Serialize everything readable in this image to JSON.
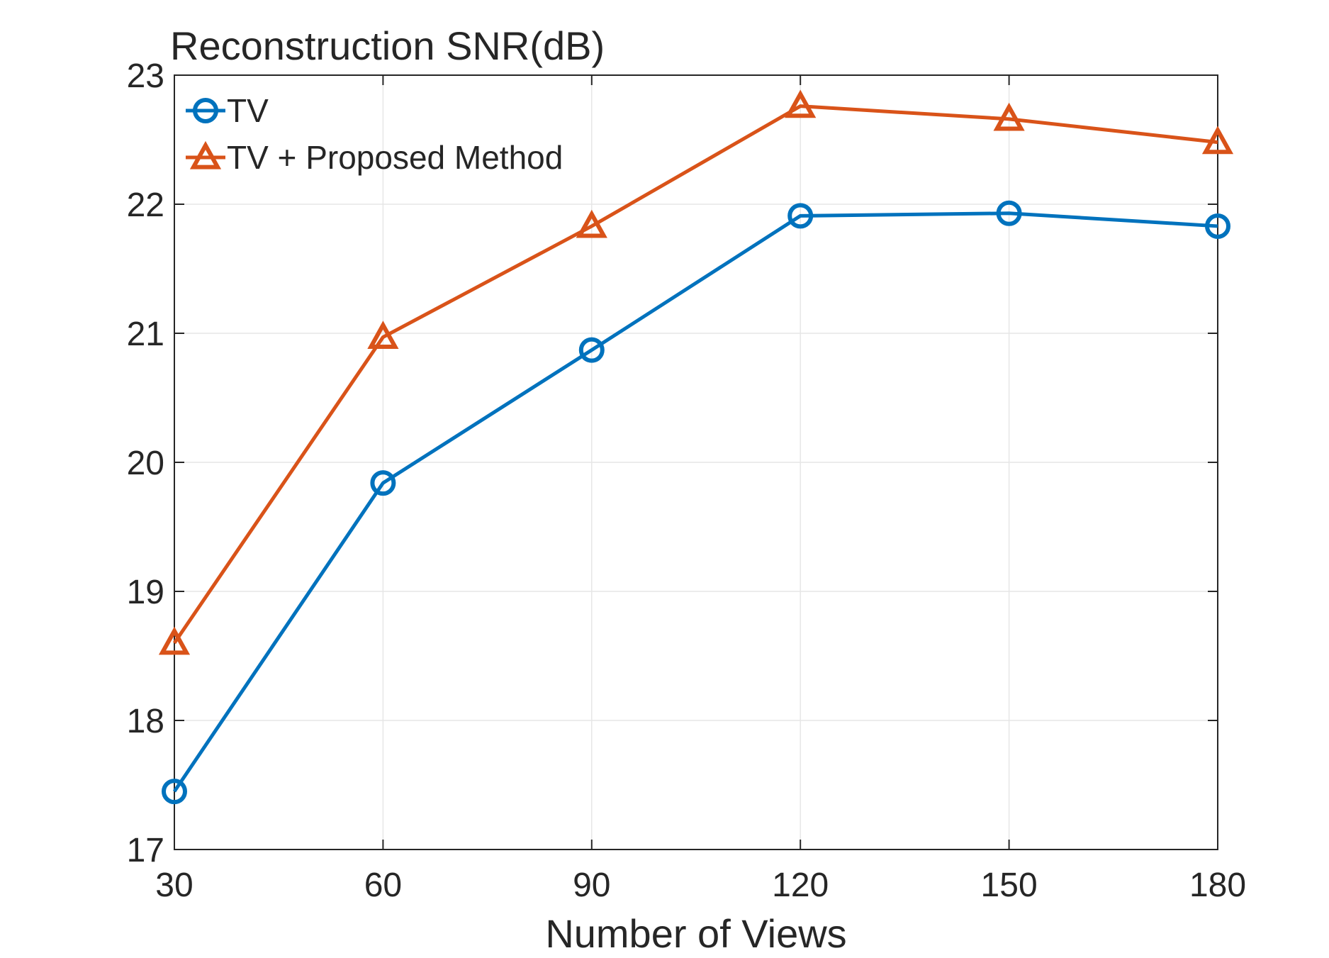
{
  "chart_data": {
    "type": "line",
    "title": "Reconstruction SNR(dB)",
    "xlabel": "Number of Views",
    "ylabel": "",
    "x": [
      30,
      60,
      90,
      120,
      150,
      180
    ],
    "xticks": [
      30,
      60,
      90,
      120,
      150,
      180
    ],
    "xlim": [
      30,
      180
    ],
    "yticks": [
      17,
      18,
      19,
      20,
      21,
      22,
      23
    ],
    "ylim": [
      17,
      23
    ],
    "grid": true,
    "legend_position": "top-left",
    "series": [
      {
        "name": "TV",
        "marker": "circle",
        "color": "#0072BD",
        "values": [
          17.45,
          19.84,
          20.87,
          21.91,
          21.93,
          21.83
        ]
      },
      {
        "name": "TV + Proposed Method",
        "marker": "triangle",
        "color": "#D95319",
        "values": [
          18.6,
          20.97,
          21.83,
          22.76,
          22.66,
          22.48
        ]
      }
    ]
  }
}
